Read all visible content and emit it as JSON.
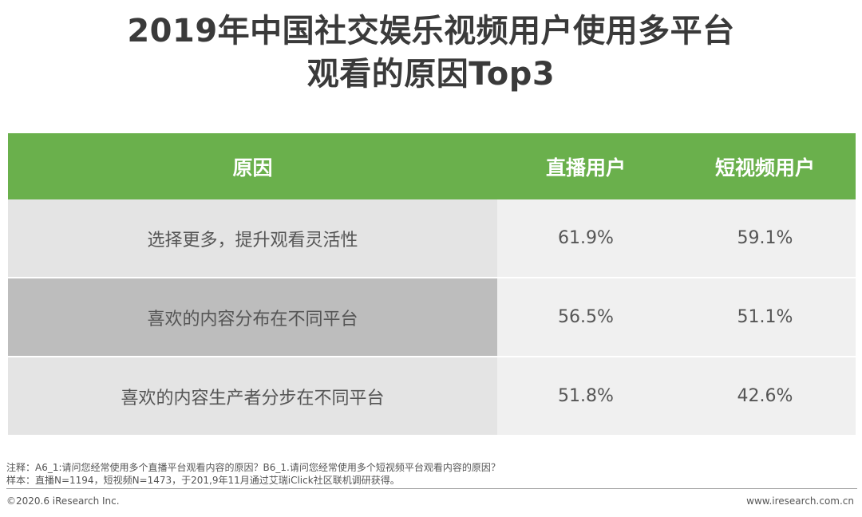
{
  "title_line1": "2019年中国社交娱乐视频用户使用多平台",
  "title_line2": "观看的原因Top3",
  "chart_data": {
    "type": "table",
    "columns": [
      "原因",
      "直播用户",
      "短视频用户"
    ],
    "rows": [
      {
        "reason": "选择更多，提升观看灵活性",
        "live": "61.9%",
        "short": "59.1%"
      },
      {
        "reason": "喜欢的内容分布在不同平台",
        "live": "56.5%",
        "short": "51.1%"
      },
      {
        "reason": "喜欢的内容生产者分步在不同平台",
        "live": "51.8%",
        "short": "42.6%"
      }
    ],
    "colors": {
      "header": "#6ab04c",
      "reason_cell": "#e4e4e4",
      "reason_cell_highlight": "#bdbdbd",
      "value_cell": "#f0f0f0"
    }
  },
  "notes": {
    "line1": "注释：A6_1:请问您经常使用多个直播平台观看内容的原因？B6_1.请问您经常使用多个短视频平台观看内容的原因？",
    "line2": "样本：直播N=1194，短视频N=1473，于201,9年11月通过艾瑞iClick社区联机调研获得。"
  },
  "footer": {
    "copyright": "©2020.6 iResearch Inc.",
    "url": "www.iresearch.com.cn"
  }
}
